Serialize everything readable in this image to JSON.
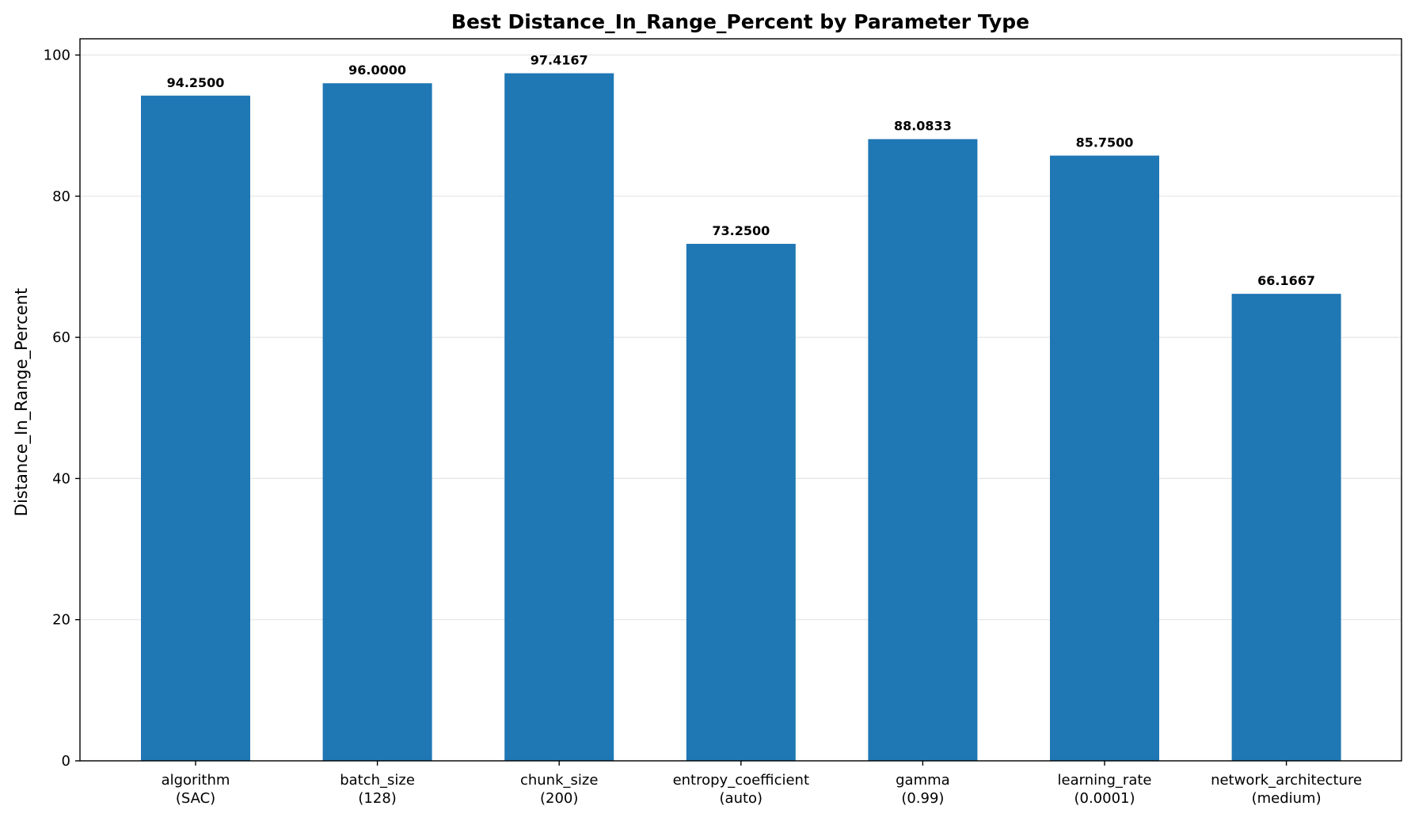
{
  "chart_data": {
    "type": "bar",
    "title": "Best Distance_In_Range_Percent by Parameter Type",
    "xlabel": "",
    "ylabel": "Distance_In_Range_Percent",
    "categories": [
      [
        "algorithm",
        "(SAC)"
      ],
      [
        "batch_size",
        "(128)"
      ],
      [
        "chunk_size",
        "(200)"
      ],
      [
        "entropy_coefficient",
        "(auto)"
      ],
      [
        "gamma",
        "(0.99)"
      ],
      [
        "learning_rate",
        "(0.0001)"
      ],
      [
        "network_architecture",
        "(medium)"
      ]
    ],
    "values": [
      94.25,
      96.0,
      97.4167,
      73.25,
      88.0833,
      85.75,
      66.1667
    ],
    "value_labels": [
      "94.2500",
      "96.0000",
      "97.4167",
      "73.2500",
      "88.0833",
      "85.7500",
      "66.1667"
    ],
    "ylim": [
      0,
      102.3
    ],
    "yticks": [
      0,
      20,
      40,
      60,
      80,
      100
    ],
    "grid": "horizontal",
    "bar_color": "#1f77b4"
  }
}
